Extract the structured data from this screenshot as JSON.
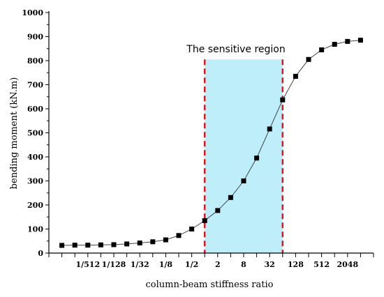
{
  "chart_data": {
    "type": "scatter",
    "title": "",
    "xlabel": "column-beam stiffness ratio",
    "ylabel": "bending moment (kN.m)",
    "x_scale": "log2",
    "x_tick_labels": [
      "1/512",
      "1/128",
      "1/32",
      "1/8",
      "1/2",
      "2",
      "8",
      "32",
      "128",
      "512",
      "2048"
    ],
    "y_ticks": [
      "0",
      "100",
      "200",
      "300",
      "400",
      "500",
      "600",
      "700",
      "800",
      "900",
      "1000"
    ],
    "ylim": [
      0,
      1000
    ],
    "series": [
      {
        "x": [
          "1/2048",
          "1/1024",
          "1/512",
          "1/256",
          "1/128",
          "1/64",
          "1/32",
          "1/16",
          "1/8",
          "1/4",
          "1/2",
          "1",
          "2",
          "4",
          "8",
          "16",
          "32",
          "64",
          "128",
          "256",
          "512",
          "1024",
          "2048",
          "4096"
        ],
        "values": [
          32,
          33,
          33,
          34,
          35,
          38,
          42,
          47,
          55,
          73,
          100,
          135,
          177,
          231,
          300,
          395,
          516,
          637,
          735,
          805,
          845,
          868,
          880,
          885
        ],
        "marker": "square",
        "line": true
      }
    ],
    "annotation": {
      "text": "The sensitive region",
      "x_range": [
        "1",
        "64"
      ],
      "y_top": 805,
      "fill_color": "#bdeefa",
      "border_color": "#e0141c"
    },
    "colors": {
      "marker": "#000000",
      "line": "#444444",
      "region_fill": "#bdeefa",
      "region_border": "#e0141c"
    }
  }
}
